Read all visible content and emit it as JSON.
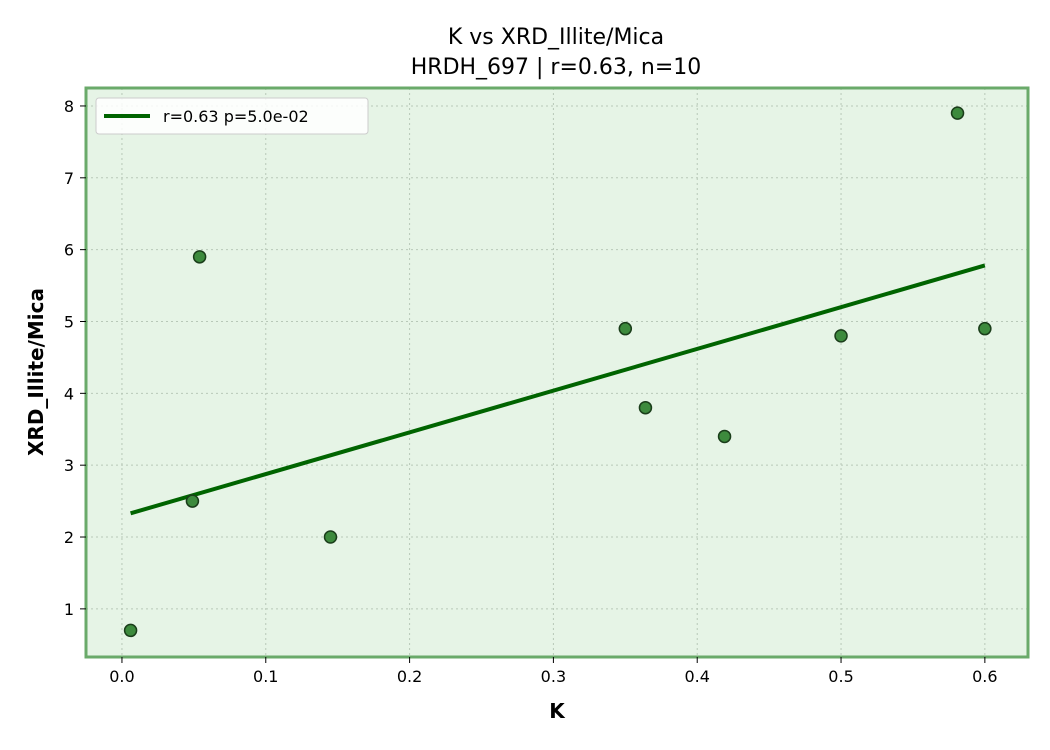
{
  "chart_data": {
    "type": "scatter",
    "title": "K vs XRD_Illite/Mica",
    "subtitle": "HRDH_697 | r=0.63, n=10",
    "xlabel": "K",
    "ylabel": "XRD_Illite/Mica",
    "xlim": [
      -0.025,
      0.63
    ],
    "ylim": [
      0.33,
      8.25
    ],
    "x_ticks": [
      0.0,
      0.1,
      0.2,
      0.3,
      0.4,
      0.5,
      0.6
    ],
    "x_tick_labels": [
      "0.0",
      "0.1",
      "0.2",
      "0.3",
      "0.4",
      "0.5",
      "0.6"
    ],
    "y_ticks": [
      1,
      2,
      3,
      4,
      5,
      6,
      7,
      8
    ],
    "y_tick_labels": [
      "1",
      "2",
      "3",
      "4",
      "5",
      "6",
      "7",
      "8"
    ],
    "grid": true,
    "legend_position": "top-left",
    "series": [
      {
        "kind": "points",
        "x": [
          0.006,
          0.049,
          0.054,
          0.145,
          0.35,
          0.364,
          0.419,
          0.5,
          0.581,
          0.6
        ],
        "y": [
          0.7,
          2.5,
          5.9,
          2.0,
          4.9,
          3.8,
          3.4,
          4.8,
          7.9,
          4.9
        ]
      },
      {
        "kind": "fit-line",
        "name": "r=0.63  p=5.0e-02",
        "x": [
          0.006,
          0.6
        ],
        "y": [
          2.33,
          5.78
        ]
      }
    ],
    "colors": {
      "plot_background": "#e6f4e6",
      "frame": "#6aaa6a",
      "point_fill": "#3d8a3d",
      "point_edge": "#1a3d1a",
      "fit_line": "#006400"
    }
  }
}
